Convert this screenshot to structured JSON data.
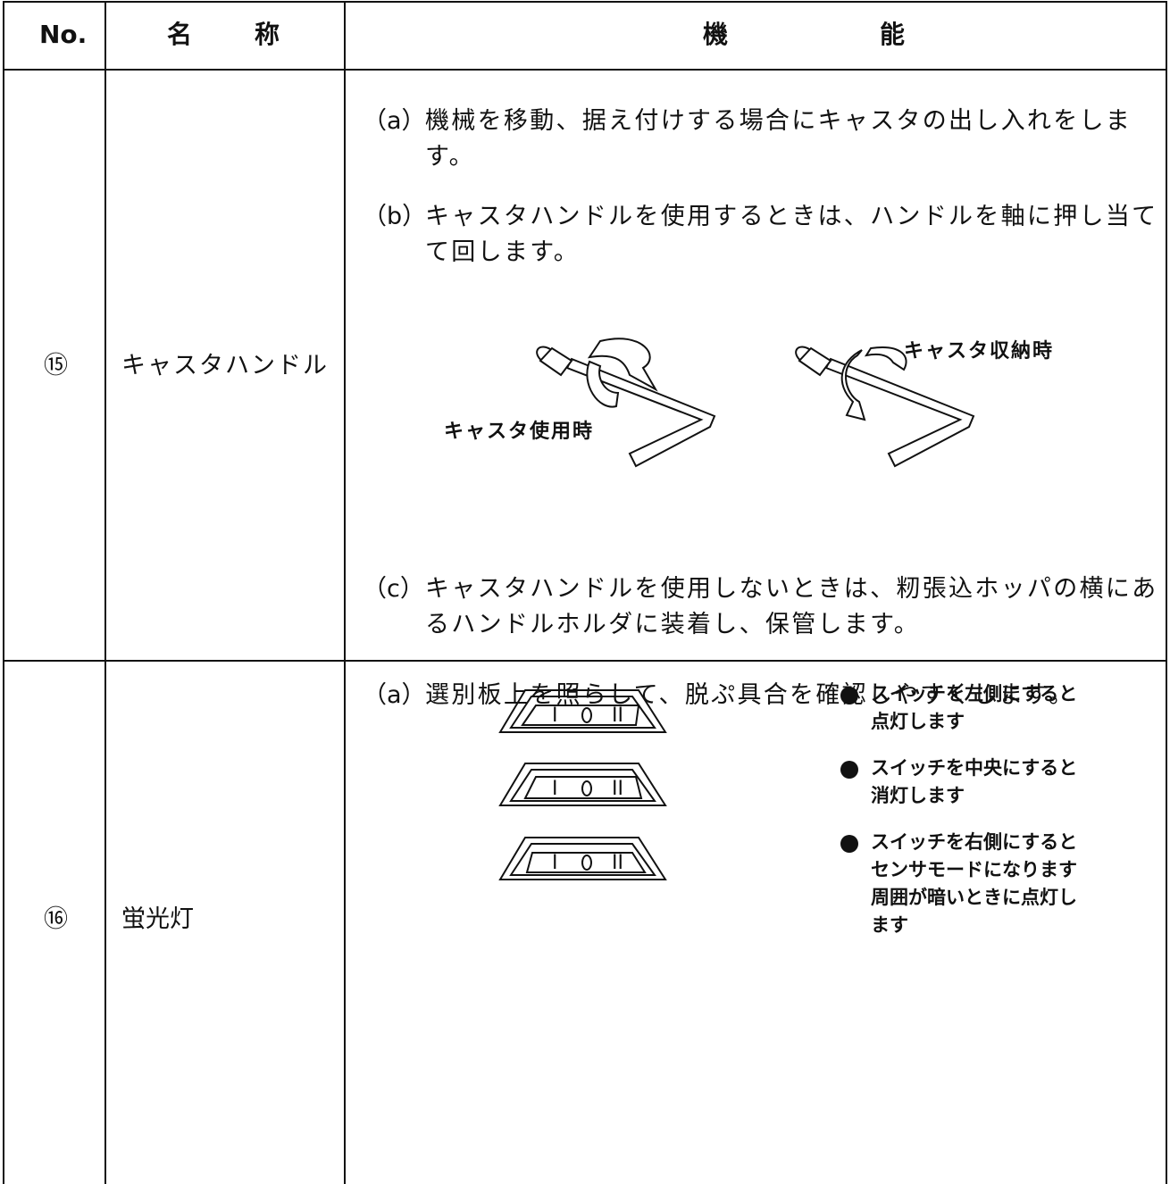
{
  "header": {
    "no": "No.",
    "name": "名称",
    "function": "機能"
  },
  "rows": [
    {
      "no": "⑮",
      "name": "キャスタハンドル",
      "items": [
        {
          "marker": "（a）",
          "lines": [
            "機械を移動、据え付けする場合にキャスタの出し入れをしま",
            "す。"
          ]
        },
        {
          "marker": "（b）",
          "lines": [
            "キャスタハンドルを使用するときは、ハンドルを軸に押し当て",
            "て回します。"
          ]
        },
        {
          "marker": "（c）",
          "lines": [
            "キャスタハンドルを使用しないときは、籾張込ホッパの横にあ",
            "るハンドルホルダに装着し、保管します。"
          ]
        }
      ],
      "figure_labels": [
        "キャスタ使用時",
        "キャスタ収納時"
      ]
    },
    {
      "no": "⑯",
      "name": "蛍光灯",
      "items": [
        {
          "marker": "（a）",
          "lines": [
            "選別板上を照らして、脱ぷ具合を確認しやすくします。"
          ]
        }
      ],
      "notes": [
        "スイッチを左側にすると点灯します",
        "スイッチを中央にすると消灯します",
        "スイッチを右側にするとセンサモードになります周囲が暗いときに点灯します"
      ]
    }
  ]
}
